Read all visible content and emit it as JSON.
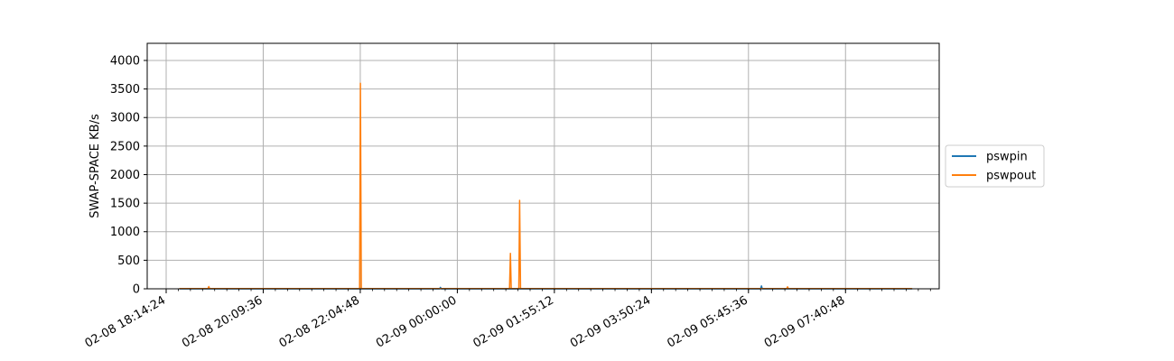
{
  "chart_data": {
    "type": "line",
    "title": "",
    "xlabel": "",
    "ylabel": "SWAP-SPACE KB/s",
    "x_format": "MM-DD HH:MM:SS",
    "xlim": [
      "02-08 18:14:24",
      "02-09 09:32:00"
    ],
    "ylim": [
      0,
      4300
    ],
    "x_ticks": [
      "02-08 18:14:24",
      "02-08 20:09:36",
      "02-08 22:04:48",
      "02-09 00:00:00",
      "02-09 01:55:12",
      "02-09 03:50:24",
      "02-09 05:45:36",
      "02-09 07:40:48"
    ],
    "y_ticks": [
      0,
      500,
      1000,
      1500,
      2000,
      2500,
      3000,
      3500,
      4000
    ],
    "grid": true,
    "legend_position": "outside-right",
    "series": [
      {
        "name": "pswpin",
        "color": "#1f77b4",
        "x": [
          "02-08 18:30:00",
          "02-08 23:39:00",
          "02-08 23:40:00",
          "02-08 23:41:00",
          "02-09 06:00:00",
          "02-09 06:01:00",
          "02-09 06:02:00",
          "02-09 09:00:00"
        ],
        "y": [
          0,
          0,
          25,
          0,
          0,
          50,
          0,
          0
        ]
      },
      {
        "name": "pswpout",
        "color": "#ff7f0e",
        "x": [
          "02-08 18:30:00",
          "02-08 19:04:00",
          "02-08 19:05:00",
          "02-08 19:06:00",
          "02-08 22:04:00",
          "02-08 22:05:00",
          "02-08 22:06:00",
          "02-09 01:02:00",
          "02-09 01:03:00",
          "02-09 01:04:00",
          "02-09 01:13:00",
          "02-09 01:14:00",
          "02-09 01:15:00",
          "02-09 06:31:00",
          "02-09 06:32:00",
          "02-09 06:33:00",
          "02-09 09:00:00"
        ],
        "y": [
          5,
          5,
          40,
          5,
          5,
          3600,
          5,
          5,
          620,
          5,
          5,
          1550,
          5,
          5,
          35,
          5,
          5
        ]
      }
    ]
  }
}
